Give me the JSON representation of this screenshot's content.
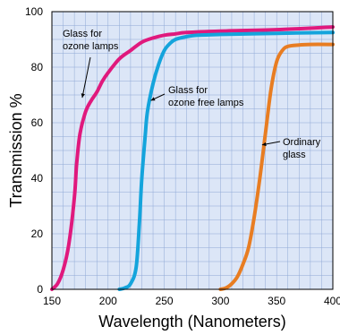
{
  "chart_data": {
    "type": "line",
    "xlabel": "Wavelength (Nanometers)",
    "ylabel": "Transmission %",
    "xlim": [
      150,
      400
    ],
    "ylim": [
      0,
      100
    ],
    "xticks": [
      "150",
      "200",
      "250",
      "300",
      "350",
      "400"
    ],
    "yticks": [
      "0",
      "20",
      "40",
      "60",
      "80",
      "100"
    ],
    "grid": true,
    "background_color": "#dce6f7",
    "series": [
      {
        "color": "#e0197d",
        "x": [
          150,
          155,
          160,
          165,
          170,
          172,
          175,
          180,
          185,
          190,
          195,
          200,
          210,
          220,
          230,
          240,
          250,
          260,
          270,
          300,
          350,
          400
        ],
        "y": [
          0,
          2,
          7,
          16,
          33,
          45,
          56,
          64,
          68,
          71,
          75,
          78,
          83,
          86,
          89,
          90.5,
          91.5,
          92,
          92.5,
          93,
          93.5,
          94.5
        ]
      },
      {
        "color": "#14a4dc",
        "x": [
          210,
          215,
          220,
          225,
          228,
          230,
          233,
          235,
          240,
          245,
          250,
          255,
          260,
          270,
          280,
          300,
          350,
          400
        ],
        "y": [
          0,
          0.5,
          2,
          8,
          25,
          40,
          55,
          64,
          74,
          81,
          86,
          88.5,
          90,
          91,
          91.5,
          91.8,
          92.2,
          92.5
        ]
      },
      {
        "color": "#e87d22",
        "x": [
          300,
          305,
          310,
          315,
          320,
          325,
          330,
          335,
          340,
          345,
          350,
          355,
          360,
          370,
          380,
          400
        ],
        "y": [
          0,
          0.5,
          2,
          4.5,
          9,
          15,
          26,
          40,
          56,
          72,
          82,
          86,
          87.5,
          88,
          88.2,
          88.2
        ]
      }
    ],
    "annotations": [
      {
        "lines": [
          "Glass for",
          "ozone lamps"
        ],
        "points_to": [
          177,
          69
        ]
      },
      {
        "lines": [
          "Glass for",
          "ozone free lamps"
        ],
        "points_to": [
          238,
          68
        ]
      },
      {
        "lines": [
          "Ordinary",
          "glass"
        ],
        "points_to": [
          337,
          52
        ]
      }
    ]
  }
}
